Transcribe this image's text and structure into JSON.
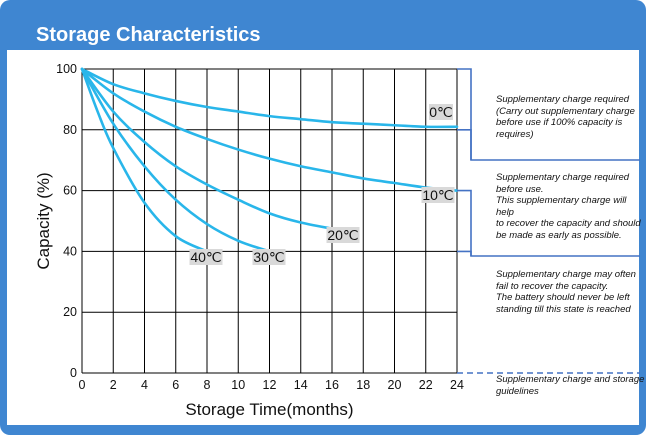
{
  "title": "Storage Characteristics",
  "colors": {
    "panel": "#3f86d1",
    "curve": "#29b6ea",
    "grid": "#000000",
    "bracket": "#4472c4",
    "label_bg": "#d9d9d9"
  },
  "chart_data": {
    "type": "line",
    "xlabel": "Storage Time(months)",
    "ylabel": "Capacity (%)",
    "xlim": [
      0,
      24
    ],
    "ylim": [
      0,
      100
    ],
    "x_ticks": [
      "0",
      "2",
      "4",
      "6",
      "8",
      "10",
      "12",
      "14",
      "16",
      "18",
      "20",
      "22",
      "24"
    ],
    "y_ticks": [
      "0",
      "20",
      "40",
      "60",
      "80",
      "100"
    ],
    "grid": true,
    "series": [
      {
        "name": "0℃",
        "x": [
          0,
          2,
          4,
          6,
          8,
          10,
          12,
          14,
          16,
          18,
          20,
          22,
          24
        ],
        "y": [
          100,
          95,
          92,
          89.5,
          87.5,
          86,
          84.5,
          83.5,
          82.5,
          82,
          81.5,
          81,
          81
        ]
      },
      {
        "name": "10℃",
        "x": [
          0,
          2,
          4,
          6,
          8,
          10,
          12,
          14,
          16,
          18,
          20,
          22,
          24
        ],
        "y": [
          100,
          92,
          86,
          81,
          77,
          73.5,
          70.5,
          68,
          66,
          64,
          62.5,
          61,
          60
        ]
      },
      {
        "name": "20℃",
        "x": [
          0,
          2,
          4,
          6,
          8,
          10,
          12,
          14,
          16.5
        ],
        "y": [
          100,
          86,
          76,
          68,
          62,
          57,
          52.5,
          49.5,
          47
        ]
      },
      {
        "name": "30℃",
        "x": [
          0,
          2,
          4,
          6,
          8,
          10,
          12
        ],
        "y": [
          100,
          82,
          68,
          57,
          49,
          43.5,
          40
        ]
      },
      {
        "name": "40℃",
        "x": [
          0,
          1,
          2,
          4,
          6,
          8
        ],
        "y": [
          100,
          86,
          74,
          56,
          45,
          40
        ]
      }
    ],
    "annotations": [
      "Supplementary charge required\n(Carry out supplementary charge\nbefore use if 100% capacity is\nrequires)",
      "Supplementary charge required\nbefore use.\nThis supplementary charge will help\nto recover the capacity and should\nbe made  as early as possible.",
      "Supplementary charge may often\nfail to recover the capacity.\nThe battery should never be left\nstanding till this state is reached",
      "Supplementary charge and storage\nguidelines"
    ]
  }
}
